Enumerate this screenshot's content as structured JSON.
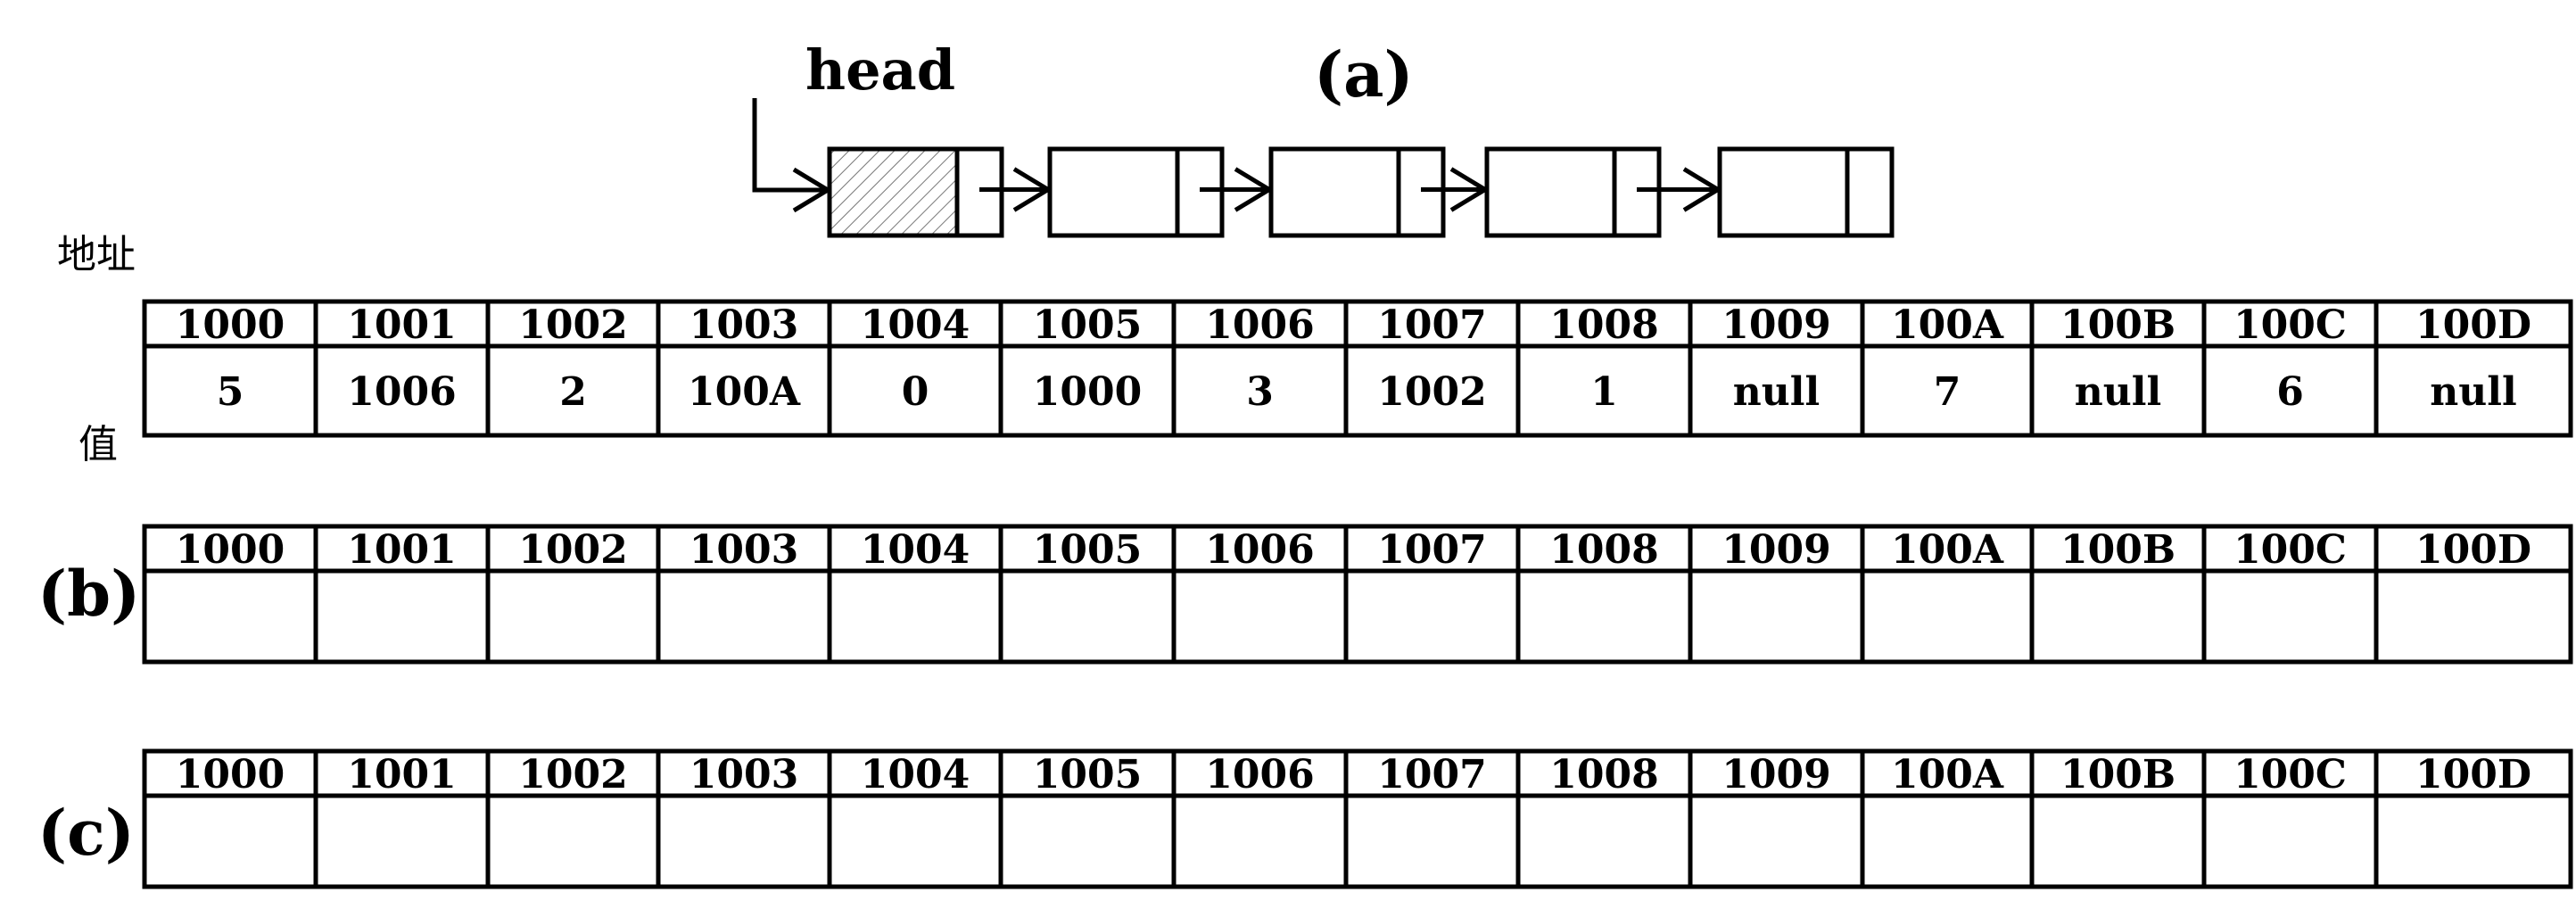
{
  "panel_a": {
    "label": "(a)",
    "head_label": "head",
    "node_count": 5
  },
  "axis_labels": {
    "address": "地址",
    "value": "值"
  },
  "addresses": [
    "1000",
    "1001",
    "1002",
    "1003",
    "1004",
    "1005",
    "1006",
    "1007",
    "1008",
    "1009",
    "100A",
    "100B",
    "100C",
    "100D"
  ],
  "values": [
    "5",
    "1006",
    "2",
    "100A",
    "0",
    "1000",
    "3",
    "1002",
    "1",
    "null",
    "7",
    "null",
    "6",
    "null"
  ],
  "tables": [
    {
      "id": "a",
      "label": "",
      "filled": true
    },
    {
      "id": "b",
      "label": "(b)",
      "filled": false
    },
    {
      "id": "c",
      "label": "(c)",
      "filled": false
    }
  ]
}
